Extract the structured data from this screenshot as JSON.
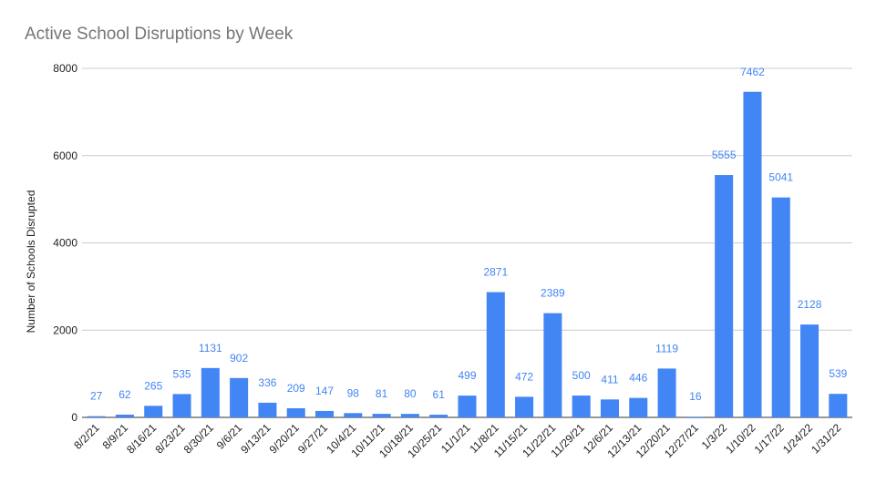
{
  "chart_data": {
    "type": "bar",
    "title": "Active School Disruptions by Week",
    "xlabel": "",
    "ylabel": "Number of Schools Disrupted",
    "ylim": [
      0,
      8000
    ],
    "yticks": [
      0,
      2000,
      4000,
      6000,
      8000
    ],
    "grid": true,
    "legend": "none",
    "bar_color": "#4285f4",
    "label_color": "#4285f4",
    "categories": [
      "8/2/21",
      "8/9/21",
      "8/16/21",
      "8/23/21",
      "8/30/21",
      "9/6/21",
      "9/13/21",
      "9/20/21",
      "9/27/21",
      "10/4/21",
      "10/11/21",
      "10/18/21",
      "10/25/21",
      "11/1/21",
      "11/8/21",
      "11/15/21",
      "11/22/21",
      "11/29/21",
      "12/6/21",
      "12/13/21",
      "12/20/21",
      "12/27/21",
      "1/3/22",
      "1/10/22",
      "1/17/22",
      "1/24/22",
      "1/31/22"
    ],
    "values": [
      27,
      62,
      265,
      535,
      1131,
      902,
      336,
      209,
      147,
      98,
      81,
      80,
      61,
      499,
      2871,
      472,
      2389,
      500,
      411,
      446,
      1119,
      16,
      5555,
      7462,
      5041,
      2128,
      539
    ]
  }
}
